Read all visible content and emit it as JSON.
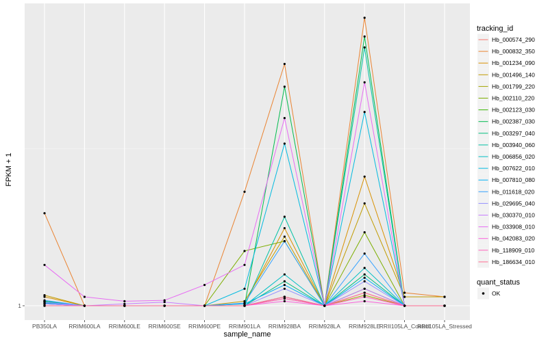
{
  "chart_data": {
    "type": "line",
    "xlabel": "sample_name",
    "ylabel": "FPKM + 1",
    "y_scale": "log",
    "y_ticks": [
      "1"
    ],
    "categories": [
      "PB350LA",
      "RRIM600LA",
      "RRIM600LE",
      "RRIM600SE",
      "RRIM600PE",
      "RRIM901LA",
      "RRIM928BA",
      "RRIM928LA",
      "RRIM928LE",
      "RRII105LA_Control",
      "RRII105LA_Stressed"
    ],
    "legend": {
      "color_title": "tracking_id",
      "shape_title": "quant_status",
      "shape_entries": [
        "OK"
      ],
      "position": "right"
    },
    "grid": true,
    "series": [
      {
        "name": "Hb_000574_290",
        "color": "#F8766D",
        "values": [
          1.0,
          1.0,
          1.0,
          1.0,
          1.0,
          1.0,
          1.08,
          1.0,
          1.15,
          1.0,
          1.0
        ]
      },
      {
        "name": "Hb_000832_350",
        "color": "#EA8331",
        "values": [
          2.7,
          1.0,
          1.0,
          1.0,
          1.0,
          3.4,
          13.4,
          1.0,
          22.0,
          1.15,
          1.1
        ]
      },
      {
        "name": "Hb_001234_090",
        "color": "#D89000",
        "values": [
          1.1,
          1.0,
          1.0,
          1.0,
          1.0,
          1.02,
          2.3,
          1.0,
          4.0,
          1.1,
          1.1
        ]
      },
      {
        "name": "Hb_001496_140",
        "color": "#C09B00",
        "values": [
          1.12,
          1.0,
          1.0,
          1.0,
          1.0,
          1.05,
          2.1,
          1.0,
          3.0,
          1.1,
          1.1
        ]
      },
      {
        "name": "Hb_001799_220",
        "color": "#A3A500",
        "values": [
          1.05,
          1.0,
          1.0,
          1.0,
          1.0,
          1.0,
          1.1,
          1.0,
          1.12,
          1.0,
          1.0
        ]
      },
      {
        "name": "Hb_002110_220",
        "color": "#7CAE00",
        "values": [
          1.05,
          1.0,
          1.0,
          1.0,
          1.0,
          1.8,
          2.0,
          1.0,
          2.2,
          1.0,
          1.0
        ]
      },
      {
        "name": "Hb_002123_030",
        "color": "#39B600",
        "values": [
          1.03,
          1.0,
          1.0,
          1.0,
          1.0,
          1.0,
          1.1,
          1.0,
          1.2,
          1.0,
          1.0
        ]
      },
      {
        "name": "Hb_002387_030",
        "color": "#00BB4E",
        "values": [
          1.05,
          1.0,
          1.0,
          1.0,
          1.0,
          1.0,
          10.5,
          1.0,
          18.0,
          1.0,
          1.0
        ]
      },
      {
        "name": "Hb_003297_040",
        "color": "#00BF7D",
        "values": [
          1.05,
          1.0,
          1.0,
          1.0,
          1.0,
          1.0,
          1.3,
          1.0,
          1.4,
          1.0,
          1.0
        ]
      },
      {
        "name": "Hb_003940_060",
        "color": "#00C1A3",
        "values": [
          1.02,
          1.0,
          1.0,
          1.0,
          1.0,
          1.0,
          2.6,
          1.0,
          16.0,
          1.0,
          1.0
        ]
      },
      {
        "name": "Hb_006856_020",
        "color": "#00BFC4",
        "values": [
          1.02,
          1.0,
          1.0,
          1.0,
          1.0,
          1.0,
          1.4,
          1.0,
          1.5,
          1.0,
          1.0
        ]
      },
      {
        "name": "Hb_007622_010",
        "color": "#00BAE0",
        "values": [
          1.04,
          1.0,
          1.0,
          1.0,
          1.0,
          1.2,
          5.7,
          1.0,
          8.0,
          1.0,
          1.0
        ]
      },
      {
        "name": "Hb_007810_080",
        "color": "#00B0F6",
        "values": [
          1.03,
          1.0,
          1.0,
          1.0,
          1.0,
          1.02,
          1.25,
          1.0,
          1.35,
          1.0,
          1.0
        ]
      },
      {
        "name": "Hb_011618_020",
        "color": "#35A2FF",
        "values": [
          1.06,
          1.0,
          1.0,
          1.0,
          1.0,
          1.03,
          2.0,
          1.0,
          1.75,
          1.0,
          1.0
        ]
      },
      {
        "name": "Hb_029695_040",
        "color": "#9590FF",
        "values": [
          1.04,
          1.0,
          1.0,
          1.0,
          1.0,
          1.0,
          1.2,
          1.0,
          1.3,
          1.0,
          1.0
        ]
      },
      {
        "name": "Hb_030370_010",
        "color": "#C77CFF",
        "values": [
          1.02,
          1.0,
          1.02,
          1.04,
          1.0,
          1.0,
          1.1,
          1.0,
          1.2,
          1.0,
          1.0
        ]
      },
      {
        "name": "Hb_033908_010",
        "color": "#E76BF3",
        "values": [
          1.55,
          1.1,
          1.05,
          1.06,
          1.25,
          1.55,
          7.5,
          1.0,
          11.0,
          1.0,
          1.0
        ]
      },
      {
        "name": "Hb_042083_020",
        "color": "#FA62DB",
        "values": [
          1.0,
          1.0,
          1.0,
          1.0,
          1.0,
          1.0,
          1.05,
          1.0,
          1.05,
          1.0,
          1.0
        ]
      },
      {
        "name": "Hb_118909_010",
        "color": "#FF62BC",
        "values": [
          1.0,
          1.0,
          1.0,
          1.0,
          1.0,
          1.0,
          1.08,
          1.0,
          1.1,
          1.0,
          1.0
        ]
      },
      {
        "name": "Hb_186634_010",
        "color": "#FF6C91",
        "values": [
          1.0,
          1.0,
          1.0,
          1.0,
          1.0,
          1.0,
          1.1,
          1.0,
          1.15,
          1.0,
          1.0
        ]
      }
    ]
  }
}
